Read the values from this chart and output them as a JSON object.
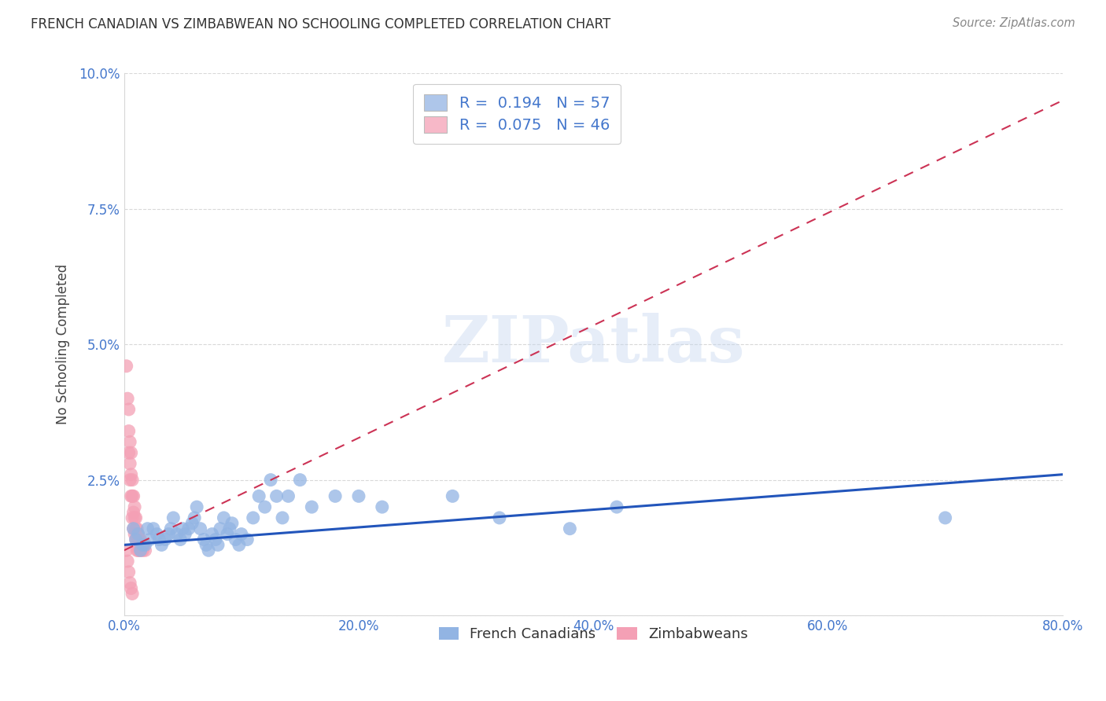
{
  "title": "FRENCH CANADIAN VS ZIMBABWEAN NO SCHOOLING COMPLETED CORRELATION CHART",
  "source": "Source: ZipAtlas.com",
  "ylabel": "No Schooling Completed",
  "xlabel_blue": "French Canadians",
  "xlabel_pink": "Zimbabweans",
  "xlim": [
    0.0,
    0.8
  ],
  "ylim": [
    0.0,
    0.1
  ],
  "ytick_labels": [
    "",
    "2.5%",
    "5.0%",
    "7.5%",
    "10.0%"
  ],
  "xtick_labels": [
    "0.0%",
    "",
    "20.0%",
    "",
    "40.0%",
    "",
    "60.0%",
    "",
    "80.0%"
  ],
  "R_blue": 0.194,
  "N_blue": 57,
  "R_pink": 0.075,
  "N_pink": 46,
  "blue_color": "#92b4e3",
  "pink_color": "#f4a0b5",
  "line_blue_color": "#2255bb",
  "line_pink_color": "#cc3355",
  "legend_blue_face": "#aec6ea",
  "legend_pink_face": "#f7b8c8",
  "blue_scatter": [
    [
      0.008,
      0.016
    ],
    [
      0.01,
      0.014
    ],
    [
      0.012,
      0.015
    ],
    [
      0.014,
      0.012
    ],
    [
      0.016,
      0.013
    ],
    [
      0.018,
      0.013
    ],
    [
      0.02,
      0.016
    ],
    [
      0.022,
      0.014
    ],
    [
      0.025,
      0.016
    ],
    [
      0.028,
      0.015
    ],
    [
      0.03,
      0.014
    ],
    [
      0.032,
      0.013
    ],
    [
      0.035,
      0.014
    ],
    [
      0.038,
      0.015
    ],
    [
      0.04,
      0.016
    ],
    [
      0.042,
      0.018
    ],
    [
      0.045,
      0.015
    ],
    [
      0.048,
      0.014
    ],
    [
      0.05,
      0.016
    ],
    [
      0.052,
      0.015
    ],
    [
      0.055,
      0.016
    ],
    [
      0.058,
      0.017
    ],
    [
      0.06,
      0.018
    ],
    [
      0.062,
      0.02
    ],
    [
      0.065,
      0.016
    ],
    [
      0.068,
      0.014
    ],
    [
      0.07,
      0.013
    ],
    [
      0.072,
      0.012
    ],
    [
      0.075,
      0.015
    ],
    [
      0.078,
      0.014
    ],
    [
      0.08,
      0.013
    ],
    [
      0.082,
      0.016
    ],
    [
      0.085,
      0.018
    ],
    [
      0.088,
      0.015
    ],
    [
      0.09,
      0.016
    ],
    [
      0.092,
      0.017
    ],
    [
      0.095,
      0.014
    ],
    [
      0.098,
      0.013
    ],
    [
      0.1,
      0.015
    ],
    [
      0.105,
      0.014
    ],
    [
      0.11,
      0.018
    ],
    [
      0.115,
      0.022
    ],
    [
      0.12,
      0.02
    ],
    [
      0.125,
      0.025
    ],
    [
      0.13,
      0.022
    ],
    [
      0.135,
      0.018
    ],
    [
      0.14,
      0.022
    ],
    [
      0.15,
      0.025
    ],
    [
      0.16,
      0.02
    ],
    [
      0.18,
      0.022
    ],
    [
      0.2,
      0.022
    ],
    [
      0.22,
      0.02
    ],
    [
      0.28,
      0.022
    ],
    [
      0.32,
      0.018
    ],
    [
      0.38,
      0.016
    ],
    [
      0.42,
      0.02
    ],
    [
      0.7,
      0.018
    ]
  ],
  "pink_scatter": [
    [
      0.002,
      0.046
    ],
    [
      0.003,
      0.04
    ],
    [
      0.004,
      0.038
    ],
    [
      0.004,
      0.034
    ],
    [
      0.004,
      0.03
    ],
    [
      0.005,
      0.032
    ],
    [
      0.005,
      0.028
    ],
    [
      0.005,
      0.025
    ],
    [
      0.006,
      0.03
    ],
    [
      0.006,
      0.026
    ],
    [
      0.006,
      0.022
    ],
    [
      0.007,
      0.025
    ],
    [
      0.007,
      0.022
    ],
    [
      0.007,
      0.018
    ],
    [
      0.008,
      0.022
    ],
    [
      0.008,
      0.019
    ],
    [
      0.008,
      0.016
    ],
    [
      0.009,
      0.02
    ],
    [
      0.009,
      0.018
    ],
    [
      0.009,
      0.015
    ],
    [
      0.01,
      0.018
    ],
    [
      0.01,
      0.016
    ],
    [
      0.01,
      0.014
    ],
    [
      0.011,
      0.016
    ],
    [
      0.011,
      0.014
    ],
    [
      0.011,
      0.012
    ],
    [
      0.012,
      0.015
    ],
    [
      0.012,
      0.013
    ],
    [
      0.012,
      0.012
    ],
    [
      0.013,
      0.014
    ],
    [
      0.013,
      0.013
    ],
    [
      0.013,
      0.012
    ],
    [
      0.014,
      0.014
    ],
    [
      0.014,
      0.013
    ],
    [
      0.015,
      0.013
    ],
    [
      0.015,
      0.012
    ],
    [
      0.016,
      0.013
    ],
    [
      0.016,
      0.012
    ],
    [
      0.017,
      0.013
    ],
    [
      0.018,
      0.012
    ],
    [
      0.002,
      0.012
    ],
    [
      0.003,
      0.01
    ],
    [
      0.004,
      0.008
    ],
    [
      0.005,
      0.006
    ],
    [
      0.006,
      0.005
    ],
    [
      0.007,
      0.004
    ]
  ],
  "blue_line_x": [
    0.0,
    0.8
  ],
  "blue_line_y": [
    0.013,
    0.026
  ],
  "pink_line_x": [
    0.0,
    0.8
  ],
  "pink_line_y": [
    0.012,
    0.095
  ],
  "watermark_text": "ZIPatlas",
  "watermark_color": "#c8d8f0",
  "grid_color": "#d8d8d8",
  "tick_color": "#4477cc",
  "background_color": "#ffffff"
}
